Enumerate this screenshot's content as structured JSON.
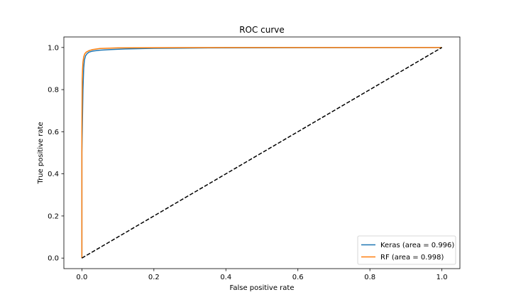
{
  "chart_data": {
    "type": "line",
    "title": "ROC curve",
    "xlabel": "False positive rate",
    "ylabel": "True positive rate",
    "xlim": [
      -0.05,
      1.05
    ],
    "ylim": [
      -0.05,
      1.05
    ],
    "x_ticks": [
      0.0,
      0.2,
      0.4,
      0.6,
      0.8,
      1.0
    ],
    "y_ticks": [
      0.0,
      0.2,
      0.4,
      0.6,
      0.8,
      1.0
    ],
    "x_tick_labels": [
      "0.0",
      "0.2",
      "0.4",
      "0.6",
      "0.8",
      "1.0"
    ],
    "y_tick_labels": [
      "0.0",
      "0.2",
      "0.4",
      "0.6",
      "0.8",
      "1.0"
    ],
    "grid": false,
    "legend_position": "lower-right",
    "series": [
      {
        "name": "Keras (area = 0.996)",
        "color": "#1f77b4",
        "dash": "solid",
        "x": [
          0.0,
          0.0,
          0.002,
          0.003,
          0.004,
          0.005,
          0.007,
          0.01,
          0.015,
          0.02,
          0.03,
          0.05,
          0.08,
          0.12,
          0.2,
          0.35,
          0.6,
          1.0
        ],
        "y": [
          0.0,
          0.5,
          0.7,
          0.8,
          0.85,
          0.9,
          0.94,
          0.96,
          0.972,
          0.978,
          0.983,
          0.987,
          0.99,
          0.993,
          0.996,
          0.998,
          0.999,
          1.0
        ]
      },
      {
        "name": "RF (area = 0.998)",
        "color": "#ff7f0e",
        "dash": "solid",
        "x": [
          0.0,
          0.0,
          0.001,
          0.002,
          0.003,
          0.005,
          0.008,
          0.012,
          0.02,
          0.03,
          0.05,
          0.1,
          0.2,
          0.4,
          1.0
        ],
        "y": [
          0.0,
          0.6,
          0.85,
          0.9,
          0.93,
          0.955,
          0.97,
          0.978,
          0.985,
          0.99,
          0.995,
          0.998,
          0.999,
          1.0,
          1.0
        ]
      },
      {
        "name": "",
        "color": "#000000",
        "dash": "dashed",
        "x": [
          0.0,
          1.0
        ],
        "y": [
          0.0,
          1.0
        ]
      }
    ]
  }
}
